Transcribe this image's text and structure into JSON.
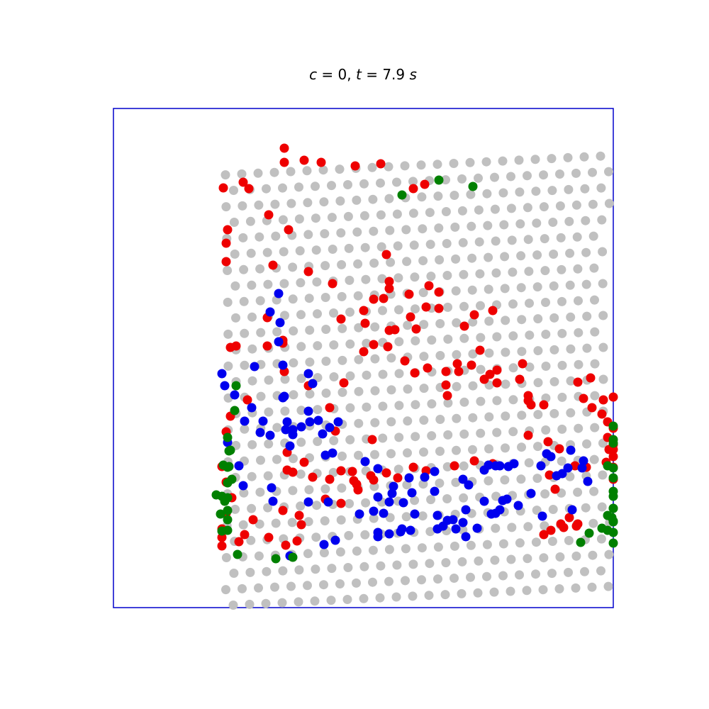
{
  "chart_data": {
    "type": "scatter",
    "title": "c = 0, t = 7.9 s",
    "title_parts": {
      "c_sym": "c",
      "c_eq": " = 0, ",
      "t_sym": "t",
      "t_eq": " = 7.9 ",
      "unit": "s"
    },
    "axes_visible": false,
    "frame_color": "#0000cc",
    "xlim": [
      0,
      705
    ],
    "ylim": [
      0,
      704
    ],
    "marker_colors": {
      "bulk": "#c0c0c0",
      "red": "#ee0000",
      "blue": "#0000ee",
      "green": "#008000"
    },
    "lattice": {
      "comment_free": true,
      "x0": 153,
      "y0": 615,
      "dx": 23.8,
      "dy": 15.7,
      "rows": 34,
      "cols": 24
    },
    "series": [
      {
        "color_key": "red",
        "points": [
          [
            153,
            617
          ],
          [
            177,
            611
          ],
          [
            153,
            593
          ],
          [
            197,
            580
          ],
          [
            159,
            571
          ],
          [
            167,
            549
          ],
          [
            159,
            527
          ],
          [
            153,
            505
          ],
          [
            159,
            456
          ],
          [
            165,
            434
          ],
          [
            189,
            411
          ],
          [
            217,
            335
          ],
          [
            239,
            327
          ],
          [
            265,
            587
          ],
          [
            262,
            574
          ],
          [
            253,
            513
          ],
          [
            239,
            331
          ],
          [
            217,
            295
          ],
          [
            173,
            335
          ],
          [
            165,
            337
          ],
          [
            159,
            216
          ],
          [
            159,
            190
          ],
          [
            161,
            171
          ],
          [
            183,
            104
          ],
          [
            219,
            150
          ],
          [
            225,
            221
          ],
          [
            247,
            171
          ],
          [
            241,
            76
          ],
          [
            269,
            73
          ],
          [
            293,
            76
          ],
          [
            155,
            112
          ],
          [
            191,
            113
          ],
          [
            241,
            56
          ],
          [
            275,
            230
          ],
          [
            299,
            551
          ],
          [
            321,
            557
          ],
          [
            345,
            538
          ],
          [
            337,
            512
          ],
          [
            313,
            455
          ],
          [
            275,
            391
          ],
          [
            241,
            371
          ],
          [
            343,
            530
          ],
          [
            367,
            524
          ],
          [
            305,
            422
          ],
          [
            365,
            467
          ],
          [
            325,
            387
          ],
          [
            321,
            297
          ],
          [
            309,
            247
          ],
          [
            353,
            285
          ],
          [
            389,
            313
          ],
          [
            387,
            336
          ],
          [
            353,
            343
          ],
          [
            389,
            244
          ],
          [
            355,
            303
          ],
          [
            367,
            269
          ],
          [
            419,
            294
          ],
          [
            427,
            311
          ],
          [
            441,
            280
          ],
          [
            459,
            282
          ],
          [
            469,
            390
          ],
          [
            471,
            405
          ],
          [
            487,
            371
          ],
          [
            509,
            291
          ],
          [
            459,
            259
          ],
          [
            445,
            250
          ],
          [
            417,
            262
          ],
          [
            397,
            312
          ],
          [
            389,
            254
          ],
          [
            367,
            333
          ],
          [
            423,
            113
          ],
          [
            439,
            107
          ],
          [
            377,
            78
          ],
          [
            341,
            81
          ],
          [
            385,
            206
          ],
          [
            381,
            268
          ],
          [
            411,
            356
          ],
          [
            425,
            373
          ],
          [
            443,
            366
          ],
          [
            469,
            371
          ],
          [
            485,
            360
          ],
          [
            505,
            362
          ],
          [
            517,
            341
          ],
          [
            523,
            382
          ],
          [
            531,
            375
          ],
          [
            541,
            369
          ],
          [
            573,
            382
          ],
          [
            585,
            405
          ],
          [
            589,
            418
          ],
          [
            607,
            418
          ],
          [
            607,
            601
          ],
          [
            617,
            595
          ],
          [
            635,
            591
          ],
          [
            653,
            589
          ],
          [
            643,
            577
          ],
          [
            623,
            537
          ],
          [
            615,
            517
          ],
          [
            585,
            412
          ],
          [
            577,
            360
          ],
          [
            535,
            285
          ],
          [
            495,
            307
          ],
          [
            541,
            387
          ],
          [
            651,
            504
          ],
          [
            667,
            506
          ],
          [
            695,
            499
          ],
          [
            705,
            481
          ],
          [
            705,
            407
          ],
          [
            691,
            411
          ],
          [
            673,
            380
          ],
          [
            655,
            386
          ],
          [
            663,
            409
          ],
          [
            675,
            422
          ],
          [
            689,
            431
          ],
          [
            697,
            442
          ],
          [
            705,
            451
          ],
          [
            705,
            474
          ],
          [
            705,
            523
          ],
          [
            697,
            464
          ],
          [
            699,
            481
          ],
          [
            705,
            491
          ],
          [
            705,
            506
          ],
          [
            631,
            586
          ],
          [
            655,
            586
          ],
          [
            629,
            480
          ],
          [
            613,
            470
          ],
          [
            585,
            461
          ],
          [
            535,
            501
          ],
          [
            509,
            497
          ],
          [
            481,
            504
          ],
          [
            441,
            511
          ],
          [
            423,
            506
          ],
          [
            401,
            521
          ],
          [
            385,
            514
          ],
          [
            363,
            518
          ],
          [
            339,
            525
          ],
          [
            321,
            511
          ],
          [
            305,
            523
          ],
          [
            281,
            520
          ],
          [
            269,
            499
          ],
          [
            245,
            485
          ],
          [
            245,
            510
          ],
          [
            153,
            605
          ],
          [
            239,
            567
          ],
          [
            243,
            616
          ],
          [
            219,
            605
          ],
          [
            185,
            601
          ],
          [
            259,
            610
          ]
        ]
      },
      {
        "color_key": "blue",
        "points": [
          [
            249,
            631
          ],
          [
            297,
            615
          ],
          [
            313,
            609
          ],
          [
            347,
            572
          ],
          [
            367,
            568
          ],
          [
            373,
            604
          ],
          [
            373,
            598
          ],
          [
            389,
            600
          ],
          [
            405,
            597
          ],
          [
            419,
            595
          ],
          [
            457,
            593
          ],
          [
            483,
            593
          ],
          [
            539,
            571
          ],
          [
            545,
            566
          ],
          [
            471,
            581
          ],
          [
            479,
            580
          ],
          [
            497,
            604
          ],
          [
            513,
            592
          ],
          [
            533,
            572
          ],
          [
            555,
            551
          ],
          [
            589,
            543
          ],
          [
            603,
            504
          ],
          [
            611,
            487
          ],
          [
            617,
            491
          ],
          [
            625,
            518
          ],
          [
            633,
            515
          ],
          [
            641,
            507
          ],
          [
            645,
            482
          ],
          [
            663,
            497
          ],
          [
            661,
            507
          ],
          [
            669,
            526
          ],
          [
            647,
            566
          ],
          [
            605,
            575
          ],
          [
            571,
            560
          ],
          [
            549,
            553
          ],
          [
            523,
            554
          ],
          [
            497,
            566
          ],
          [
            493,
            584
          ],
          [
            465,
            589
          ],
          [
            457,
            574
          ],
          [
            439,
            520
          ],
          [
            453,
            512
          ],
          [
            417,
            521
          ],
          [
            395,
            533
          ],
          [
            393,
            543
          ],
          [
            373,
            548
          ],
          [
            303,
            555
          ],
          [
            275,
            555
          ],
          [
            225,
            554
          ],
          [
            223,
            535
          ],
          [
            183,
            532
          ],
          [
            177,
            504
          ],
          [
            161,
            471
          ],
          [
            185,
            441
          ],
          [
            211,
            441
          ],
          [
            239,
            362
          ],
          [
            241,
            406
          ],
          [
            245,
            442
          ],
          [
            243,
            453
          ],
          [
            253,
            460
          ],
          [
            249,
            476
          ],
          [
            275,
            427
          ],
          [
            289,
            440
          ],
          [
            317,
            442
          ],
          [
            305,
            450
          ],
          [
            265,
            449
          ],
          [
            239,
            408
          ],
          [
            221,
            461
          ],
          [
            207,
            457
          ],
          [
            195,
            422
          ],
          [
            171,
            404
          ],
          [
            157,
            391
          ],
          [
            153,
            374
          ],
          [
            199,
            364
          ],
          [
            221,
            287
          ],
          [
            233,
            261
          ],
          [
            235,
            302
          ],
          [
            233,
            329
          ],
          [
            275,
            374
          ],
          [
            281,
            388
          ],
          [
            253,
            453
          ],
          [
            277,
            442
          ],
          [
            295,
            459
          ],
          [
            299,
            489
          ],
          [
            309,
            486
          ],
          [
            355,
            498
          ],
          [
            373,
            508
          ],
          [
            389,
            555
          ],
          [
            381,
            571
          ],
          [
            407,
            593
          ],
          [
            425,
            572
          ],
          [
            409,
            556
          ],
          [
            421,
            542
          ],
          [
            501,
            531
          ],
          [
            493,
            523
          ],
          [
            453,
            540
          ],
          [
            523,
            510
          ],
          [
            529,
            503
          ],
          [
            539,
            504
          ],
          [
            545,
            504
          ],
          [
            557,
            505
          ],
          [
            565,
            501
          ]
        ]
      },
      {
        "color_key": "green",
        "points": [
          [
            145,
            545
          ],
          [
            229,
            635
          ],
          [
            253,
            633
          ],
          [
            161,
            595
          ],
          [
            153,
            547
          ],
          [
            161,
            464
          ],
          [
            171,
            426
          ],
          [
            163,
            483
          ],
          [
            163,
            505
          ],
          [
            173,
            391
          ],
          [
            167,
            523
          ],
          [
            175,
            629
          ],
          [
            161,
            580
          ],
          [
            157,
            554
          ],
          [
            153,
            596
          ],
          [
            151,
            572
          ],
          [
            161,
            567
          ],
          [
            161,
            549
          ],
          [
            161,
            528
          ],
          [
            161,
            506
          ],
          [
            155,
            503
          ],
          [
            165,
            482
          ],
          [
            407,
            122
          ],
          [
            459,
            101
          ],
          [
            507,
            110
          ],
          [
            705,
            467
          ],
          [
            705,
            448
          ],
          [
            705,
            507
          ],
          [
            705,
            521
          ],
          [
            705,
            540
          ],
          [
            705,
            564
          ],
          [
            705,
            583
          ],
          [
            705,
            613
          ],
          [
            705,
            598
          ],
          [
            705,
            582
          ],
          [
            697,
            504
          ],
          [
            697,
            574
          ],
          [
            697,
            595
          ],
          [
            689,
            592
          ],
          [
            671,
            599
          ],
          [
            659,
            612
          ],
          [
            703,
            577
          ],
          [
            705,
            564
          ],
          [
            705,
            547
          ],
          [
            705,
            472
          ]
        ]
      }
    ]
  }
}
